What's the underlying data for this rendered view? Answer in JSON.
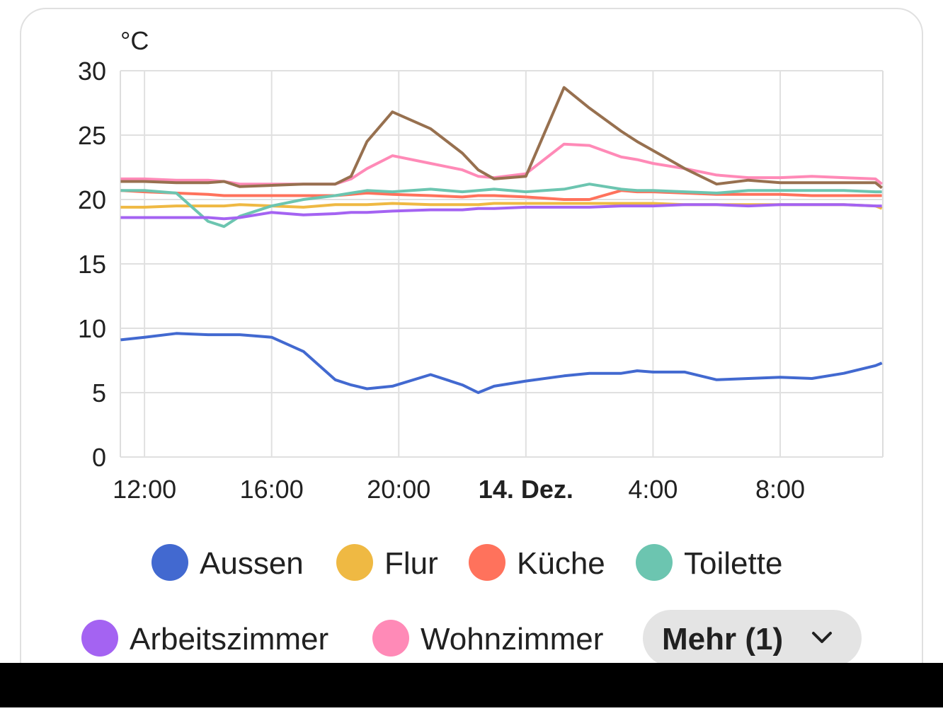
{
  "chart_data": {
    "type": "line",
    "ylabel": "°C",
    "x": [
      11.25,
      12,
      13,
      14,
      14.5,
      15,
      16,
      17,
      18,
      18.5,
      19,
      19.8,
      21,
      22,
      22.5,
      23,
      24,
      25.2,
      26,
      27,
      27.5,
      28,
      29,
      30,
      31,
      32,
      33,
      34,
      35,
      35.2
    ],
    "xlim": [
      11.24,
      35.23
    ],
    "xticks": [
      {
        "value": 12,
        "label": "12:00"
      },
      {
        "value": 16,
        "label": "16:00"
      },
      {
        "value": 20,
        "label": "20:00"
      },
      {
        "value": 24,
        "label": "14. Dez."
      },
      {
        "value": 28,
        "label": "4:00"
      },
      {
        "value": 32,
        "label": "8:00"
      }
    ],
    "ylim": [
      0,
      30
    ],
    "yticks": [
      0,
      5,
      10,
      15,
      20,
      25,
      30
    ],
    "grid": true,
    "series": [
      {
        "name": "Aussen",
        "color": "#4269d0",
        "values": [
          9.1,
          9.3,
          9.6,
          9.5,
          9.5,
          9.5,
          9.3,
          8.2,
          6.0,
          5.6,
          5.3,
          5.5,
          6.4,
          5.6,
          5.0,
          5.5,
          5.9,
          6.3,
          6.5,
          6.5,
          6.7,
          6.6,
          6.6,
          6.0,
          6.1,
          6.2,
          6.1,
          6.5,
          7.1,
          7.3
        ]
      },
      {
        "name": "Flur",
        "color": "#efb943",
        "values": [
          19.4,
          19.4,
          19.5,
          19.5,
          19.5,
          19.6,
          19.5,
          19.4,
          19.6,
          19.6,
          19.6,
          19.7,
          19.6,
          19.6,
          19.6,
          19.7,
          19.7,
          19.7,
          19.7,
          19.7,
          19.7,
          19.7,
          19.6,
          19.6,
          19.6,
          19.6,
          19.6,
          19.6,
          19.5,
          19.3
        ]
      },
      {
        "name": "Küche",
        "color": "#ff725c",
        "values": [
          20.7,
          20.6,
          20.5,
          20.4,
          20.3,
          20.3,
          20.3,
          20.3,
          20.3,
          20.4,
          20.5,
          20.4,
          20.3,
          20.2,
          20.3,
          20.3,
          20.2,
          20.0,
          20.0,
          20.7,
          20.6,
          20.6,
          20.5,
          20.4,
          20.4,
          20.4,
          20.3,
          20.3,
          20.3,
          20.3
        ]
      },
      {
        "name": "Toilette",
        "color": "#6cc5b0",
        "values": [
          20.7,
          20.7,
          20.5,
          18.3,
          17.9,
          18.7,
          19.5,
          20.0,
          20.3,
          20.5,
          20.7,
          20.6,
          20.8,
          20.6,
          20.7,
          20.8,
          20.6,
          20.8,
          21.2,
          20.8,
          20.7,
          20.7,
          20.6,
          20.5,
          20.7,
          20.7,
          20.7,
          20.7,
          20.6,
          20.6
        ]
      },
      {
        "name": "Arbeitszimmer",
        "color": "#a463f2",
        "values": [
          18.6,
          18.6,
          18.6,
          18.6,
          18.5,
          18.6,
          19.0,
          18.8,
          18.9,
          19.0,
          19.0,
          19.1,
          19.2,
          19.2,
          19.3,
          19.3,
          19.4,
          19.4,
          19.4,
          19.5,
          19.5,
          19.5,
          19.6,
          19.6,
          19.5,
          19.6,
          19.6,
          19.6,
          19.5,
          19.5
        ]
      },
      {
        "name": "Wohnzimmer",
        "color": "#ff8ab7",
        "values": [
          21.6,
          21.6,
          21.5,
          21.5,
          21.4,
          21.2,
          21.2,
          21.2,
          21.2,
          21.6,
          22.4,
          23.4,
          22.8,
          22.3,
          21.8,
          21.7,
          22.0,
          24.3,
          24.2,
          23.3,
          23.1,
          22.8,
          22.4,
          21.9,
          21.7,
          21.7,
          21.8,
          21.7,
          21.6,
          21.2
        ]
      },
      {
        "color": "#97704f",
        "values": [
          21.4,
          21.4,
          21.3,
          21.3,
          21.4,
          21.0,
          21.1,
          21.2,
          21.2,
          21.8,
          24.5,
          26.8,
          25.5,
          23.6,
          22.3,
          21.6,
          21.8,
          28.7,
          27.1,
          25.3,
          24.5,
          23.8,
          22.4,
          21.2,
          21.5,
          21.3,
          21.3,
          21.3,
          21.3,
          20.9
        ]
      }
    ],
    "legend_more": "Mehr (1)"
  }
}
